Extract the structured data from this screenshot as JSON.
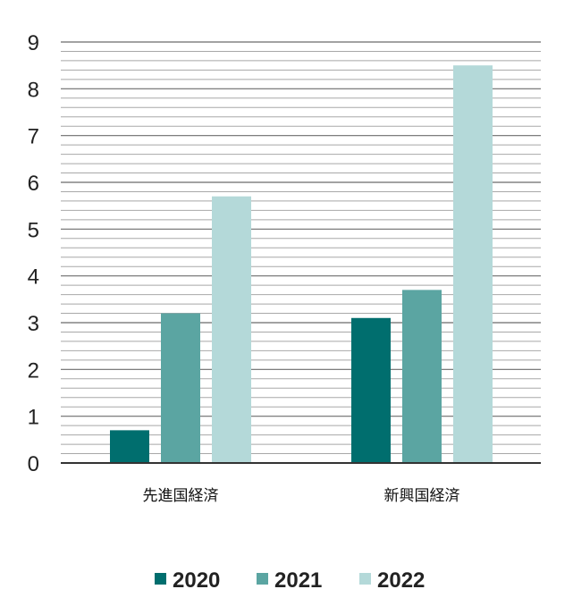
{
  "colors": {
    "series_2020": "#006e6e",
    "series_2021": "#5ba5a2",
    "series_2022": "#b4d9d9",
    "major_grid": "#6b6b6b",
    "minor_grid": "#a8a8a8",
    "axis": "#333333"
  },
  "chart_data": {
    "type": "bar",
    "categories": [
      "先進国経済",
      "新興国経済"
    ],
    "series": [
      {
        "name": "2020",
        "values": [
          0.7,
          3.1
        ]
      },
      {
        "name": "2021",
        "values": [
          3.2,
          3.7
        ]
      },
      {
        "name": "2022",
        "values": [
          5.7,
          8.5
        ]
      }
    ],
    "ylim": [
      0,
      9
    ],
    "yticks": [
      "0",
      "1",
      "2",
      "3",
      "4",
      "5",
      "6",
      "7",
      "8",
      "9"
    ],
    "grid": true,
    "minor_gridlines_per_unit": 5,
    "legend_position": "bottom",
    "title": "",
    "xlabel": "",
    "ylabel": ""
  }
}
